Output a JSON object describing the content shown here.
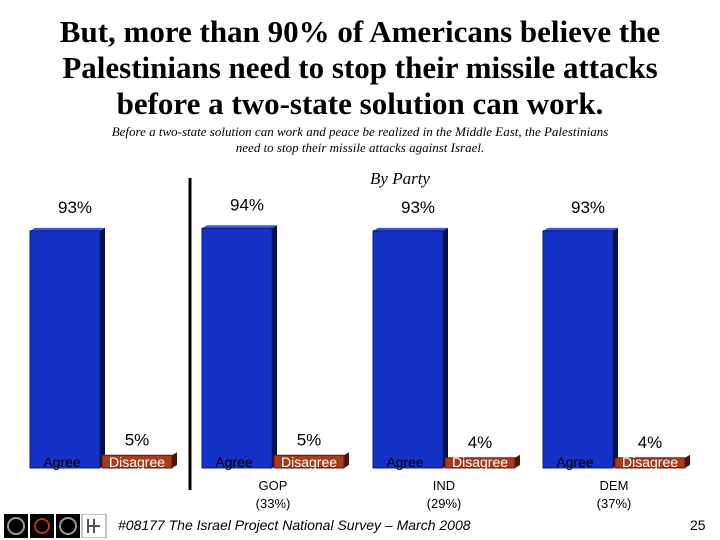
{
  "title_lines": [
    "But, more than 90% of Americans believe the",
    "Palestinians need to stop their missile attacks",
    "before a two-state solution can work."
  ],
  "subtitle_lines": [
    "Before a two-state solution can work and peace be realized in the Middle East, the Palestinians",
    "need to stop their missile attacks against Israel."
  ],
  "chart_data": {
    "type": "bar",
    "title": "By Party",
    "ylim": [
      0,
      100
    ],
    "series_names": [
      "Agree",
      "Disagree"
    ],
    "groups": [
      {
        "label": "",
        "sublabel": "",
        "values": [
          93,
          5
        ],
        "value_labels": [
          "93%",
          "5%"
        ]
      },
      {
        "label": "GOP",
        "sublabel": "(33%)",
        "values": [
          94,
          5
        ],
        "value_labels": [
          "94%",
          "5%"
        ]
      },
      {
        "label": "IND",
        "sublabel": "(29%)",
        "values": [
          93,
          4
        ],
        "value_labels": [
          "93%",
          "4%"
        ]
      },
      {
        "label": "DEM",
        "sublabel": "(37%)",
        "values": [
          93,
          4
        ],
        "value_labels": [
          "93%",
          "4%"
        ]
      }
    ],
    "colors": {
      "agree": "#1432c8",
      "disagree": "#a83c1a"
    }
  },
  "footer": {
    "survey": "#08177 The Israel Project National Survey – March 2008",
    "page": "25"
  }
}
